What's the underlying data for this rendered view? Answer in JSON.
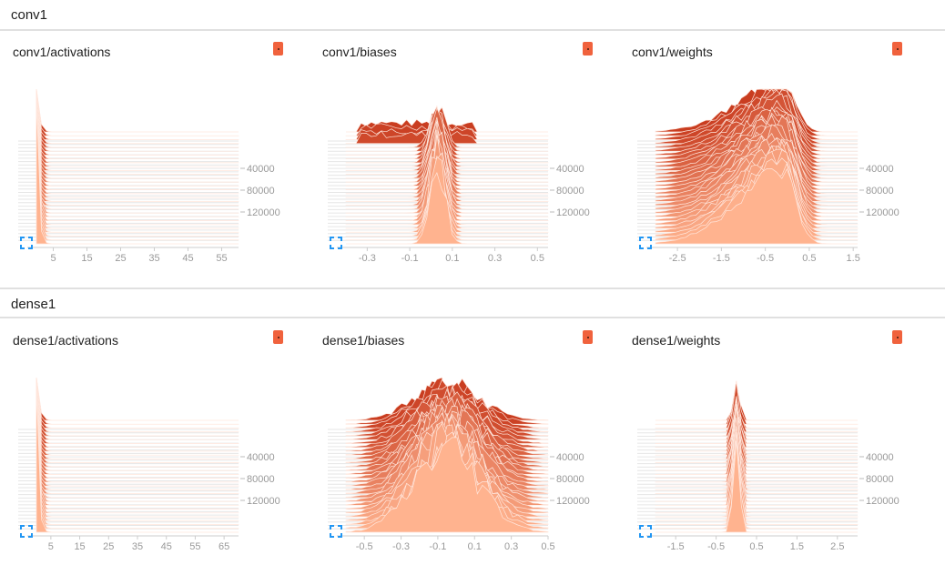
{
  "sections": [
    {
      "label": "conv1"
    },
    {
      "label": "dense1"
    }
  ],
  "colors": {
    "accent": "#f0623d",
    "expand": "#2196f3"
  },
  "icons": {
    "expand": "expand-icon",
    "menu": "menu-dot-icon"
  },
  "chart_data": [
    {
      "type": "area",
      "title": "conv1/activations",
      "xticks": [
        "5",
        "15",
        "25",
        "35",
        "45",
        "55"
      ],
      "xlim": [
        0,
        60
      ],
      "yticks": [
        "40000",
        "80000",
        "120000"
      ],
      "shape": "spike",
      "center": 0.5,
      "spread": 0.06
    },
    {
      "type": "area",
      "title": "conv1/biases",
      "xticks": [
        "-0.3",
        "-0.1",
        "0.1",
        "0.3",
        "0.5"
      ],
      "xlim": [
        -0.4,
        0.55
      ],
      "yticks": [
        "40000",
        "80000",
        "120000"
      ],
      "shape": "narrow-peak",
      "center": 0.03,
      "spread": 0.05
    },
    {
      "type": "area",
      "title": "conv1/weights",
      "xticks": [
        "-2.5",
        "-1.5",
        "-0.5",
        "0.5",
        "1.5"
      ],
      "xlim": [
        -3.0,
        1.6
      ],
      "yticks": [
        "40000",
        "80000",
        "120000"
      ],
      "shape": "skewed",
      "center": -0.1,
      "spread": 0.8
    },
    {
      "type": "area",
      "title": "dense1/activations",
      "xticks": [
        "5",
        "15",
        "25",
        "35",
        "45",
        "55",
        "65"
      ],
      "xlim": [
        0,
        70
      ],
      "yticks": [
        "40000",
        "80000",
        "120000"
      ],
      "shape": "spike",
      "center": 0.5,
      "spread": 0.06
    },
    {
      "type": "area",
      "title": "dense1/biases",
      "xticks": [
        "-0.5",
        "-0.3",
        "-0.1",
        "0.1",
        "0.3",
        "0.5"
      ],
      "xlim": [
        -0.6,
        0.5
      ],
      "yticks": [
        "40000",
        "80000",
        "120000"
      ],
      "shape": "wide",
      "center": -0.05,
      "spread": 0.25
    },
    {
      "type": "area",
      "title": "dense1/weights",
      "xticks": [
        "-1.5",
        "-0.5",
        "0.5",
        "1.5",
        "2.5"
      ],
      "xlim": [
        -2.0,
        3.0
      ],
      "yticks": [
        "40000",
        "80000",
        "120000"
      ],
      "shape": "narrow-peak",
      "center": 0.0,
      "spread": 0.12
    }
  ]
}
